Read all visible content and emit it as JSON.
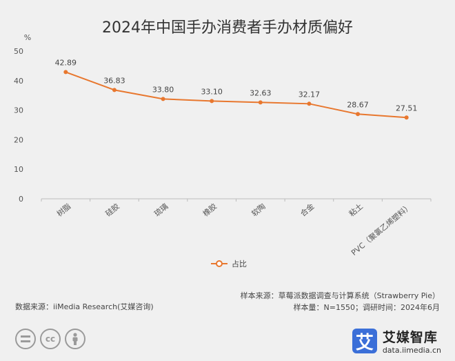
{
  "chart_data": {
    "type": "line",
    "title": "2024年中国手办消费者手办材质偏好",
    "ylabel": "%",
    "xlabel": "",
    "categories": [
      "树脂",
      "硅胶",
      "琉璃",
      "橡胶",
      "软陶",
      "合金",
      "粘土",
      "PVC（聚氯乙烯塑料）"
    ],
    "series": [
      {
        "name": "占比",
        "values": [
          42.89,
          36.83,
          33.8,
          33.1,
          32.63,
          32.17,
          28.67,
          27.51
        ]
      }
    ],
    "data_labels": [
      "42.89",
      "36.83",
      "33.80",
      "33.10",
      "32.63",
      "32.17",
      "28.67",
      "27.51"
    ],
    "yticks": [
      0,
      10,
      20,
      30,
      40,
      50
    ],
    "ylim": [
      0,
      50
    ],
    "legend_position": "bottom-center",
    "grid": false,
    "colors": {
      "series": "#e8772e",
      "axis": "#bbbbbb",
      "text": "#555555"
    }
  },
  "footer": {
    "source_left": "数据来源：iiMedia Research(艾媒咨询)",
    "sample_source": "样本来源：草莓派数据调查与计算系统（Strawberry Pie）",
    "sample_info": "样本量：N=1550；调研时间：2024年6月"
  },
  "icons": [
    "equals-icon",
    "cc-icon",
    "person-icon"
  ],
  "brand": {
    "name": "艾媒智库",
    "url": "data.iimedia.cn",
    "logo_glyph": "艾"
  }
}
